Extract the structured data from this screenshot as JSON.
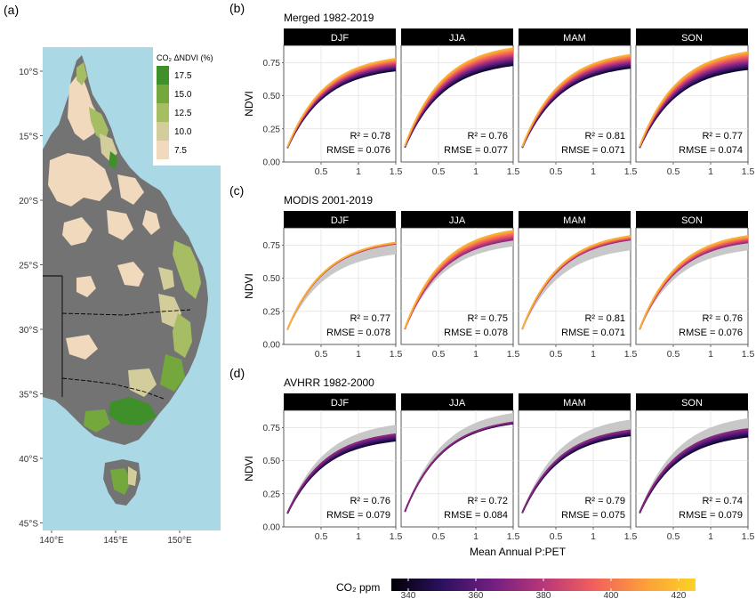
{
  "colors": {
    "sea": "#aad8e4",
    "land_grey": "#737373",
    "strip_bg": "#000000",
    "observed_band": "#c8c8c8",
    "panel_bg": "#ffffff",
    "grid": "#e0e0e0"
  },
  "map": {
    "panel_label": "(a)",
    "legend_title": "CO₂ ΔNDVI (%)",
    "legend_levels": [
      {
        "label": "17.5",
        "color": "#3f8f2a"
      },
      {
        "label": "15.0",
        "color": "#74a83c"
      },
      {
        "label": "12.5",
        "color": "#a7bd63"
      },
      {
        "label": "10.0",
        "color": "#d3cd9b"
      },
      {
        "label": "7.5",
        "color": "#f0d9bd"
      }
    ],
    "lat_ticks": [
      "10°S",
      "15°S",
      "20°S",
      "25°S",
      "30°S",
      "35°S",
      "40°S",
      "45°S"
    ],
    "lon_ticks": [
      "140°E",
      "145°E",
      "150°E"
    ]
  },
  "colorbar": {
    "title": "CO₂ ppm",
    "min": 335,
    "max": 425,
    "ticks": [
      340,
      360,
      380,
      400,
      420
    ],
    "stops": [
      "#000004",
      "#2c115f",
      "#721f81",
      "#b73779",
      "#f1605d",
      "#fb9f3a",
      "#fcd225"
    ]
  },
  "chart_data": [
    {
      "panel_label": "(b)",
      "title": "Merged 1982-2019",
      "type": "line",
      "xlabel": "",
      "ylabel": "NDVI",
      "xlim": [
        0,
        1.5
      ],
      "ylim": [
        0,
        0.88
      ],
      "x_ticks": [
        "0.5",
        "1",
        "1.5"
      ],
      "y_ticks": [
        "0.00",
        "0.25",
        "0.50",
        "0.75"
      ],
      "co2_range": [
        340,
        415
      ],
      "facets": [
        {
          "season": "DJF",
          "r2": "R² = 0.78",
          "rmse": "RMSE = 0.076",
          "ndvi_at_1_5": [
            0.69,
            0.78
          ],
          "observed_at_1_5": null
        },
        {
          "season": "JJA",
          "r2": "R² = 0.76",
          "rmse": "RMSE = 0.077",
          "ndvi_at_1_5": [
            0.73,
            0.86
          ],
          "observed_at_1_5": null
        },
        {
          "season": "MAM",
          "r2": "R² = 0.81",
          "rmse": "RMSE = 0.071",
          "ndvi_at_1_5": [
            0.71,
            0.81
          ],
          "observed_at_1_5": null
        },
        {
          "season": "SON",
          "r2": "R² = 0.77",
          "rmse": "RMSE = 0.074",
          "ndvi_at_1_5": [
            0.7,
            0.83
          ],
          "observed_at_1_5": null
        }
      ]
    },
    {
      "panel_label": "(c)",
      "title": "MODIS 2001-2019",
      "type": "line",
      "xlabel": "",
      "ylabel": "NDVI",
      "xlim": [
        0,
        1.5
      ],
      "ylim": [
        0,
        0.88
      ],
      "x_ticks": [
        "0.5",
        "1",
        "1.5"
      ],
      "y_ticks": [
        "0.00",
        "0.25",
        "0.50",
        "0.75"
      ],
      "co2_range": [
        370,
        415
      ],
      "facets": [
        {
          "season": "DJF",
          "r2": "R² = 0.77",
          "rmse": "RMSE = 0.078",
          "ndvi_at_1_5": [
            0.76,
            0.77
          ],
          "observed_at_1_5": [
            0.68,
            0.76
          ]
        },
        {
          "season": "JJA",
          "r2": "R² = 0.75",
          "rmse": "RMSE = 0.078",
          "ndvi_at_1_5": [
            0.79,
            0.86
          ],
          "observed_at_1_5": [
            0.74,
            0.86
          ]
        },
        {
          "season": "MAM",
          "r2": "R² = 0.81",
          "rmse": "RMSE = 0.071",
          "ndvi_at_1_5": [
            0.79,
            0.82
          ],
          "observed_at_1_5": [
            0.71,
            0.81
          ]
        },
        {
          "season": "SON",
          "r2": "R² = 0.76",
          "rmse": "RMSE = 0.076",
          "ndvi_at_1_5": [
            0.77,
            0.82
          ],
          "observed_at_1_5": [
            0.71,
            0.82
          ]
        }
      ]
    },
    {
      "panel_label": "(d)",
      "title": "AVHRR 1982-2000",
      "type": "line",
      "xlabel": "Mean Annual P:PET",
      "ylabel": "NDVI",
      "xlim": [
        0,
        1.5
      ],
      "ylim": [
        0,
        0.88
      ],
      "x_ticks": [
        "0.5",
        "1",
        "1.5"
      ],
      "y_ticks": [
        "0.00",
        "0.25",
        "0.50",
        "0.75"
      ],
      "co2_range": [
        340,
        370
      ],
      "facets": [
        {
          "season": "DJF",
          "r2": "R² = 0.76",
          "rmse": "RMSE = 0.079",
          "ndvi_at_1_5": [
            0.65,
            0.7
          ],
          "observed_at_1_5": [
            0.68,
            0.77
          ]
        },
        {
          "season": "JJA",
          "r2": "R² = 0.72",
          "rmse": "RMSE = 0.084",
          "ndvi_at_1_5": [
            0.78,
            0.79
          ],
          "observed_at_1_5": [
            0.78,
            0.86
          ]
        },
        {
          "season": "MAM",
          "r2": "R² = 0.79",
          "rmse": "RMSE = 0.075",
          "ndvi_at_1_5": [
            0.69,
            0.73
          ],
          "observed_at_1_5": [
            0.72,
            0.81
          ]
        },
        {
          "season": "SON",
          "r2": "R² = 0.74",
          "rmse": "RMSE = 0.079",
          "ndvi_at_1_5": [
            0.68,
            0.74
          ],
          "observed_at_1_5": [
            0.72,
            0.82
          ]
        }
      ]
    }
  ]
}
